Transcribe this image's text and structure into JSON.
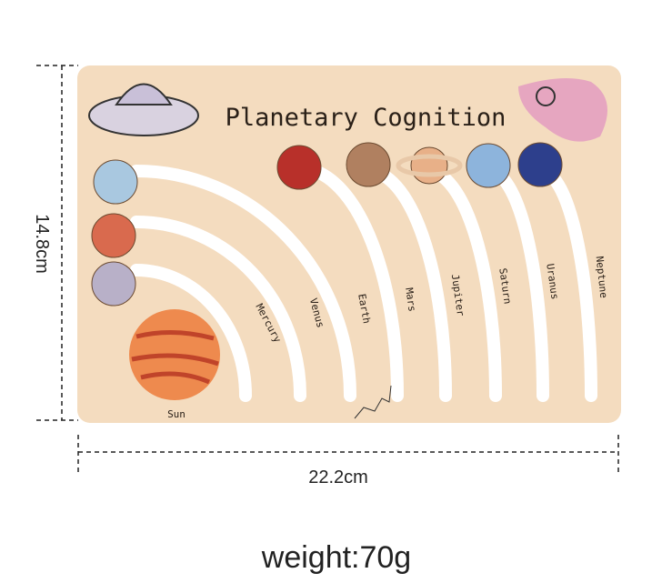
{
  "board": {
    "title": "Planetary Cognition",
    "sun_label": "Sun",
    "planet_labels": [
      "Mercury",
      "Venus",
      "Earth",
      "Mars",
      "Jupiter",
      "Saturn",
      "Uranus",
      "Neptune"
    ]
  },
  "dimensions": {
    "height": "14.8cm",
    "width": "22.2cm"
  },
  "weight": "weight:70g"
}
